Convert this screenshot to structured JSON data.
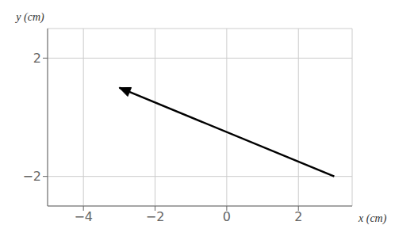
{
  "chart_data": {
    "type": "vector",
    "xlabel": "x (cm)",
    "ylabel": "y (cm)",
    "x": [
      3.0,
      -3.0
    ],
    "values": [
      -2.0,
      1.0
    ],
    "xlim": [
      -5.0,
      3.5
    ],
    "ylim": [
      -3.0,
      3.0
    ],
    "xticks": [
      {
        "value": -4,
        "label": "−4"
      },
      {
        "value": -2,
        "label": "−2"
      },
      0,
      2
    ],
    "yticks": [
      {
        "value": -2,
        "label": "−2"
      },
      2
    ],
    "grid": true,
    "color": "#000000",
    "marker": "arrow"
  }
}
